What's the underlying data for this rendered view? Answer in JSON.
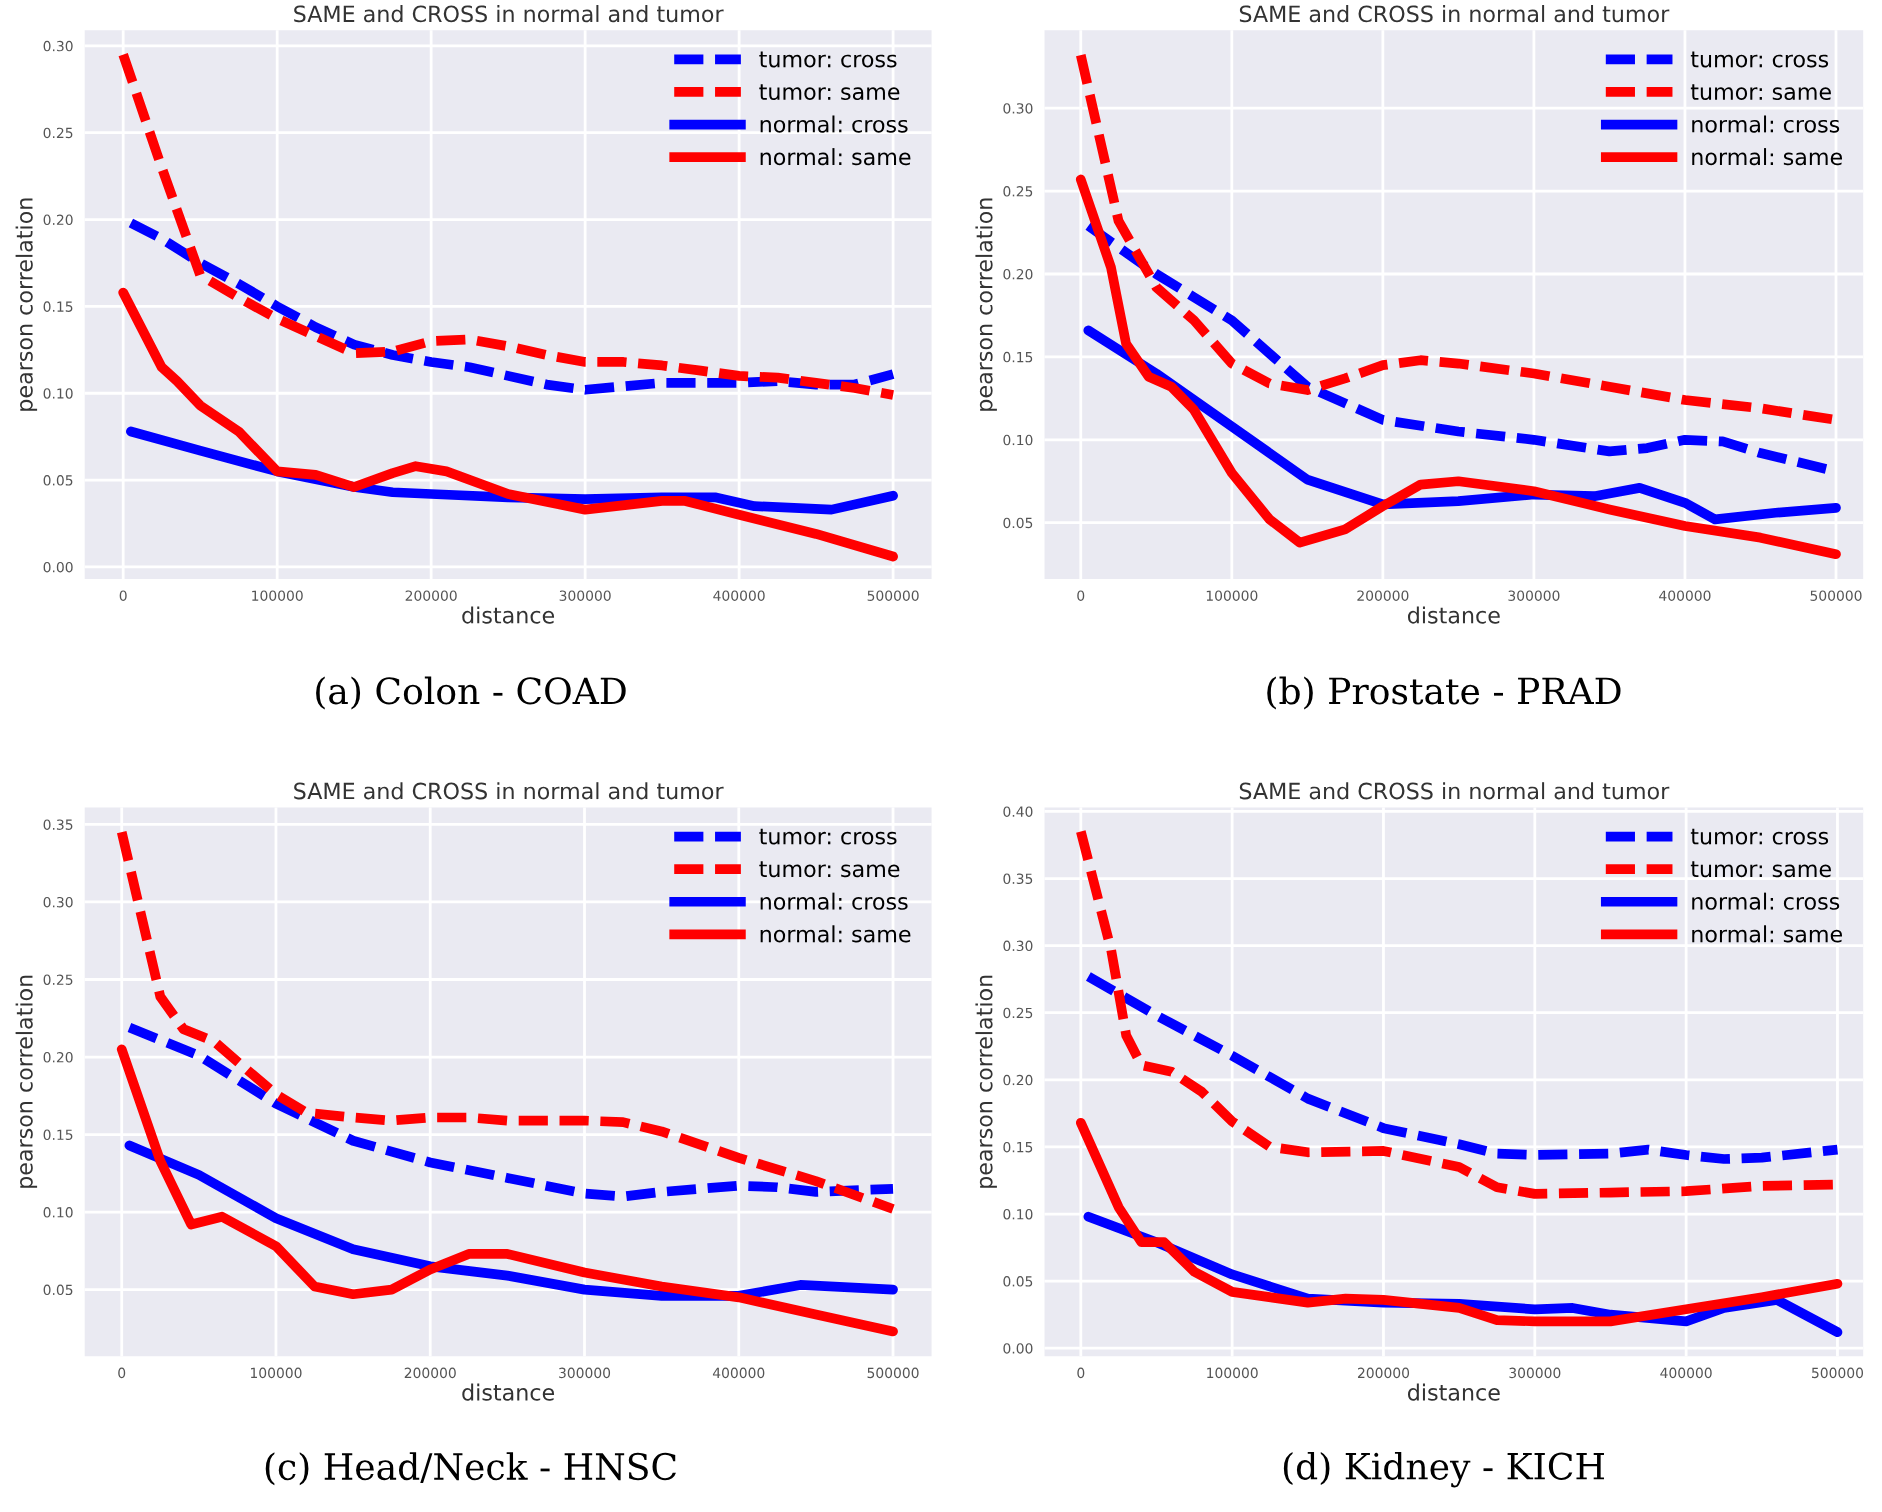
{
  "chart_data": [
    {
      "type": "line",
      "title": "SAME and CROSS in normal and tumor",
      "xlabel": "distance",
      "ylabel": "pearson correlation",
      "annotations": [
        "(a) Colon - COAD"
      ],
      "xlim": [
        -25000,
        525000
      ],
      "ylim": [
        -0.007,
        0.309
      ],
      "xticks": [
        0,
        100000,
        200000,
        300000,
        400000,
        500000
      ],
      "yticks": [
        {
          "value": 0,
          "label": "0.00"
        },
        {
          "value": 0.05,
          "label": "0.05"
        },
        {
          "value": 0.1,
          "label": "0.10"
        },
        {
          "value": 0.15,
          "label": "0.15"
        },
        {
          "value": 0.2,
          "label": "0.20"
        },
        {
          "value": 0.25,
          "label": "0.25"
        },
        {
          "value": 0.3,
          "label": "0.30"
        }
      ],
      "grid": true,
      "legend": "top right",
      "marker": "none",
      "series": [
        {
          "name": "tumor: cross",
          "color": "#0000ff",
          "line_style": "dashed",
          "x": [
            5000,
            25000,
            50000,
            75000,
            100000,
            125000,
            150000,
            175000,
            200000,
            225000,
            250000,
            275000,
            300000,
            325000,
            350000,
            375000,
            400000,
            425000,
            450000,
            475000,
            500000
          ],
          "values": [
            0.198,
            0.189,
            0.175,
            0.163,
            0.15,
            0.138,
            0.128,
            0.122,
            0.118,
            0.115,
            0.11,
            0.105,
            0.102,
            0.104,
            0.106,
            0.106,
            0.106,
            0.107,
            0.105,
            0.105,
            0.111
          ]
        },
        {
          "name": "tumor: same",
          "color": "#ff0000",
          "line_style": "dashed",
          "x": [
            0,
            25000,
            50000,
            75000,
            100000,
            125000,
            150000,
            175000,
            200000,
            225000,
            250000,
            275000,
            300000,
            325000,
            350000,
            375000,
            400000,
            425000,
            450000,
            475000,
            500000
          ],
          "values": [
            0.295,
            0.23,
            0.168,
            0.155,
            0.143,
            0.133,
            0.123,
            0.124,
            0.13,
            0.131,
            0.127,
            0.122,
            0.118,
            0.118,
            0.116,
            0.113,
            0.11,
            0.109,
            0.106,
            0.103,
            0.099
          ]
        },
        {
          "name": "normal: cross",
          "color": "#0000ff",
          "line_style": "solid",
          "x": [
            5000,
            50000,
            100000,
            150000,
            175000,
            200000,
            250000,
            300000,
            350000,
            385000,
            410000,
            460000,
            500000
          ],
          "values": [
            0.078,
            0.067,
            0.055,
            0.046,
            0.043,
            0.042,
            0.04,
            0.039,
            0.04,
            0.04,
            0.035,
            0.033,
            0.041
          ]
        },
        {
          "name": "normal: same",
          "color": "#ff0000",
          "line_style": "solid",
          "x": [
            0,
            25000,
            35000,
            50000,
            75000,
            100000,
            125000,
            150000,
            175000,
            190000,
            210000,
            250000,
            300000,
            350000,
            365000,
            400000,
            450000,
            500000
          ],
          "values": [
            0.158,
            0.115,
            0.107,
            0.093,
            0.078,
            0.055,
            0.053,
            0.046,
            0.054,
            0.058,
            0.055,
            0.042,
            0.033,
            0.038,
            0.038,
            0.03,
            0.019,
            0.006
          ]
        }
      ]
    },
    {
      "type": "line",
      "title": "SAME and CROSS in normal and tumor",
      "xlabel": "distance",
      "ylabel": "pearson correlation",
      "annotations": [
        "(b) Prostate - PRAD"
      ],
      "xlim": [
        -24000,
        518000
      ],
      "ylim": [
        0.016,
        0.347
      ],
      "xticks": [
        0,
        100000,
        200000,
        300000,
        400000,
        500000
      ],
      "yticks": [
        {
          "value": 0.05,
          "label": "0.05"
        },
        {
          "value": 0.1,
          "label": "0.10"
        },
        {
          "value": 0.15,
          "label": "0.15"
        },
        {
          "value": 0.2,
          "label": "0.20"
        },
        {
          "value": 0.25,
          "label": "0.25"
        },
        {
          "value": 0.3,
          "label": "0.30"
        }
      ],
      "grid": true,
      "legend": "top right",
      "marker": "none",
      "series": [
        {
          "name": "tumor: cross",
          "color": "#0000ff",
          "line_style": "dashed",
          "x": [
            5000,
            50000,
            100000,
            150000,
            200000,
            250000,
            300000,
            350000,
            375000,
            400000,
            425000,
            450000,
            500000
          ],
          "values": [
            0.229,
            0.2,
            0.172,
            0.132,
            0.112,
            0.105,
            0.1,
            0.093,
            0.095,
            0.1,
            0.099,
            0.092,
            0.081
          ]
        },
        {
          "name": "tumor: same",
          "color": "#ff0000",
          "line_style": "dashed",
          "x": [
            0,
            25000,
            50000,
            75000,
            100000,
            125000,
            150000,
            175000,
            200000,
            225000,
            250000,
            300000,
            350000,
            400000,
            450000,
            500000
          ],
          "values": [
            0.332,
            0.232,
            0.192,
            0.172,
            0.146,
            0.134,
            0.13,
            0.137,
            0.145,
            0.148,
            0.146,
            0.14,
            0.132,
            0.124,
            0.119,
            0.112
          ]
        },
        {
          "name": "normal: cross",
          "color": "#0000ff",
          "line_style": "solid",
          "x": [
            5000,
            50000,
            100000,
            150000,
            200000,
            250000,
            300000,
            340000,
            370000,
            400000,
            420000,
            460000,
            500000
          ],
          "values": [
            0.166,
            0.14,
            0.108,
            0.076,
            0.061,
            0.063,
            0.067,
            0.066,
            0.071,
            0.062,
            0.052,
            0.056,
            0.059
          ]
        },
        {
          "name": "normal: same",
          "color": "#ff0000",
          "line_style": "solid",
          "x": [
            0,
            20000,
            30000,
            45000,
            60000,
            75000,
            100000,
            125000,
            145000,
            175000,
            200000,
            225000,
            250000,
            300000,
            350000,
            400000,
            450000,
            500000
          ],
          "values": [
            0.257,
            0.204,
            0.158,
            0.138,
            0.132,
            0.118,
            0.08,
            0.052,
            0.038,
            0.046,
            0.06,
            0.073,
            0.075,
            0.069,
            0.058,
            0.048,
            0.041,
            0.031
          ]
        }
      ]
    },
    {
      "type": "line",
      "title": "SAME and CROSS in normal and tumor",
      "xlabel": "distance",
      "ylabel": "pearson correlation",
      "annotations": [
        "(c) Head/Neck - HNSC"
      ],
      "xlim": [
        -24000,
        525000
      ],
      "ylim": [
        0.007,
        0.361
      ],
      "xticks": [
        0,
        100000,
        200000,
        300000,
        400000,
        500000
      ],
      "yticks": [
        {
          "value": 0.05,
          "label": "0.05"
        },
        {
          "value": 0.1,
          "label": "0.10"
        },
        {
          "value": 0.15,
          "label": "0.15"
        },
        {
          "value": 0.2,
          "label": "0.20"
        },
        {
          "value": 0.25,
          "label": "0.25"
        },
        {
          "value": 0.3,
          "label": "0.30"
        },
        {
          "value": 0.35,
          "label": "0.35"
        }
      ],
      "grid": true,
      "legend": "top right",
      "marker": "none",
      "series": [
        {
          "name": "tumor: cross",
          "color": "#0000ff",
          "line_style": "dashed",
          "x": [
            5000,
            50000,
            100000,
            150000,
            200000,
            250000,
            300000,
            325000,
            350000,
            400000,
            425000,
            450000,
            500000
          ],
          "values": [
            0.219,
            0.201,
            0.17,
            0.146,
            0.132,
            0.122,
            0.112,
            0.11,
            0.113,
            0.117,
            0.116,
            0.113,
            0.115
          ]
        },
        {
          "name": "tumor: same",
          "color": "#ff0000",
          "line_style": "dashed",
          "x": [
            0,
            25000,
            40000,
            60000,
            75000,
            100000,
            120000,
            150000,
            175000,
            200000,
            225000,
            250000,
            300000,
            325000,
            350000,
            400000,
            450000,
            500000
          ],
          "values": [
            0.345,
            0.239,
            0.218,
            0.21,
            0.197,
            0.176,
            0.164,
            0.161,
            0.159,
            0.161,
            0.161,
            0.159,
            0.159,
            0.158,
            0.152,
            0.135,
            0.12,
            0.102
          ]
        },
        {
          "name": "normal: cross",
          "color": "#0000ff",
          "line_style": "solid",
          "x": [
            5000,
            50000,
            100000,
            150000,
            200000,
            250000,
            300000,
            350000,
            400000,
            440000,
            500000
          ],
          "values": [
            0.143,
            0.124,
            0.096,
            0.076,
            0.065,
            0.059,
            0.05,
            0.046,
            0.046,
            0.053,
            0.05
          ]
        },
        {
          "name": "normal: same",
          "color": "#ff0000",
          "line_style": "solid",
          "x": [
            0,
            25000,
            45000,
            65000,
            100000,
            125000,
            150000,
            175000,
            200000,
            225000,
            250000,
            300000,
            350000,
            400000,
            450000,
            500000
          ],
          "values": [
            0.205,
            0.133,
            0.092,
            0.097,
            0.078,
            0.052,
            0.047,
            0.05,
            0.063,
            0.073,
            0.073,
            0.061,
            0.052,
            0.045,
            0.034,
            0.023
          ]
        }
      ]
    },
    {
      "type": "line",
      "title": "SAME and CROSS in normal and tumor",
      "xlabel": "distance",
      "ylabel": "pearson correlation",
      "annotations": [
        "(d) Kidney - KICH"
      ],
      "xlim": [
        -24000,
        517000
      ],
      "ylim": [
        -0.006,
        0.403
      ],
      "xticks": [
        0,
        100000,
        200000,
        300000,
        400000,
        500000
      ],
      "yticks": [
        {
          "value": 0,
          "label": "0.00"
        },
        {
          "value": 0.05,
          "label": "0.05"
        },
        {
          "value": 0.1,
          "label": "0.10"
        },
        {
          "value": 0.15,
          "label": "0.15"
        },
        {
          "value": 0.2,
          "label": "0.20"
        },
        {
          "value": 0.25,
          "label": "0.25"
        },
        {
          "value": 0.3,
          "label": "0.30"
        },
        {
          "value": 0.35,
          "label": "0.35"
        },
        {
          "value": 0.4,
          "label": "0.40"
        }
      ],
      "grid": true,
      "legend": "top right",
      "marker": "none",
      "series": [
        {
          "name": "tumor: cross",
          "color": "#0000ff",
          "line_style": "dashed",
          "x": [
            5000,
            50000,
            100000,
            150000,
            200000,
            250000,
            275000,
            300000,
            350000,
            375000,
            400000,
            425000,
            450000,
            500000
          ],
          "values": [
            0.277,
            0.248,
            0.218,
            0.186,
            0.164,
            0.152,
            0.145,
            0.144,
            0.145,
            0.148,
            0.144,
            0.141,
            0.142,
            0.148
          ]
        },
        {
          "name": "tumor: same",
          "color": "#ff0000",
          "line_style": "dashed",
          "x": [
            0,
            20000,
            30000,
            40000,
            60000,
            80000,
            100000,
            125000,
            150000,
            200000,
            250000,
            275000,
            300000,
            350000,
            400000,
            450000,
            500000
          ],
          "values": [
            0.385,
            0.297,
            0.233,
            0.211,
            0.206,
            0.191,
            0.169,
            0.15,
            0.146,
            0.147,
            0.135,
            0.12,
            0.115,
            0.116,
            0.117,
            0.121,
            0.122
          ]
        },
        {
          "name": "normal: cross",
          "color": "#0000ff",
          "line_style": "solid",
          "x": [
            5000,
            50000,
            100000,
            150000,
            200000,
            250000,
            300000,
            325000,
            350000,
            400000,
            425000,
            460000,
            500000
          ],
          "values": [
            0.098,
            0.079,
            0.055,
            0.037,
            0.034,
            0.033,
            0.029,
            0.03,
            0.025,
            0.02,
            0.03,
            0.036,
            0.012
          ]
        },
        {
          "name": "normal: same",
          "color": "#ff0000",
          "line_style": "solid",
          "x": [
            0,
            25000,
            40000,
            55000,
            75000,
            100000,
            150000,
            175000,
            200000,
            250000,
            275000,
            300000,
            350000,
            400000,
            450000,
            500000
          ],
          "values": [
            0.168,
            0.105,
            0.079,
            0.079,
            0.057,
            0.042,
            0.034,
            0.037,
            0.036,
            0.03,
            0.021,
            0.02,
            0.02,
            0.029,
            0.038,
            0.048
          ]
        }
      ]
    }
  ]
}
